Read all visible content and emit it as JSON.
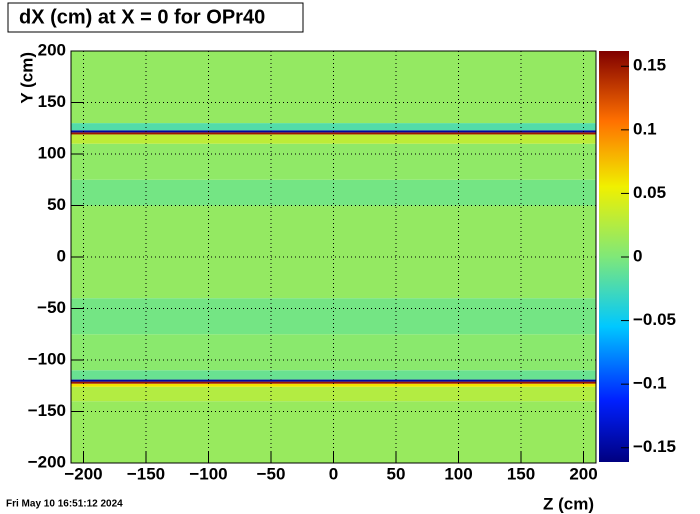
{
  "chart_data": {
    "type": "heatmap",
    "title": "dX (cm) at X = 0 for OPr40",
    "xlabel": "Z (cm)",
    "ylabel": "Y (cm)",
    "timestamp": "Fri May 10 16:51:12 2024",
    "colormap": "rainbow",
    "grid": true,
    "xlim": [
      -210,
      210
    ],
    "ylim": [
      -200,
      200
    ],
    "zlim": [
      -0.162,
      0.162
    ],
    "xticks": [
      {
        "value": -200,
        "label": "−200"
      },
      {
        "value": -150,
        "label": "−150"
      },
      {
        "value": -100,
        "label": "−100"
      },
      {
        "value": -50,
        "label": "−50"
      },
      0,
      50,
      100,
      150,
      200
    ],
    "yticks": [
      {
        "value": -200,
        "label": "−200"
      },
      {
        "value": -150,
        "label": "−150"
      },
      {
        "value": -100,
        "label": "−100"
      },
      {
        "value": -50,
        "label": "−50"
      },
      0,
      50,
      100,
      150,
      200
    ],
    "zticks": [
      {
        "value": -0.15,
        "label": "−0.15"
      },
      {
        "value": -0.1,
        "label": "−0.1"
      },
      {
        "value": -0.05,
        "label": "−0.05"
      },
      0,
      0.05,
      0.1,
      0.15
    ],
    "y_bins": [
      -200,
      -140,
      -126,
      -123,
      -121,
      -119,
      -110,
      -75,
      -40,
      50,
      75,
      110,
      119,
      121,
      123,
      130,
      200
    ],
    "z": [
      0.012,
      0.025,
      0.06,
      0.15,
      -0.15,
      -0.01,
      0.005,
      -0.005,
      0.01,
      -0.005,
      0.008,
      0.03,
      0.15,
      -0.15,
      -0.02,
      0.01
    ]
  }
}
